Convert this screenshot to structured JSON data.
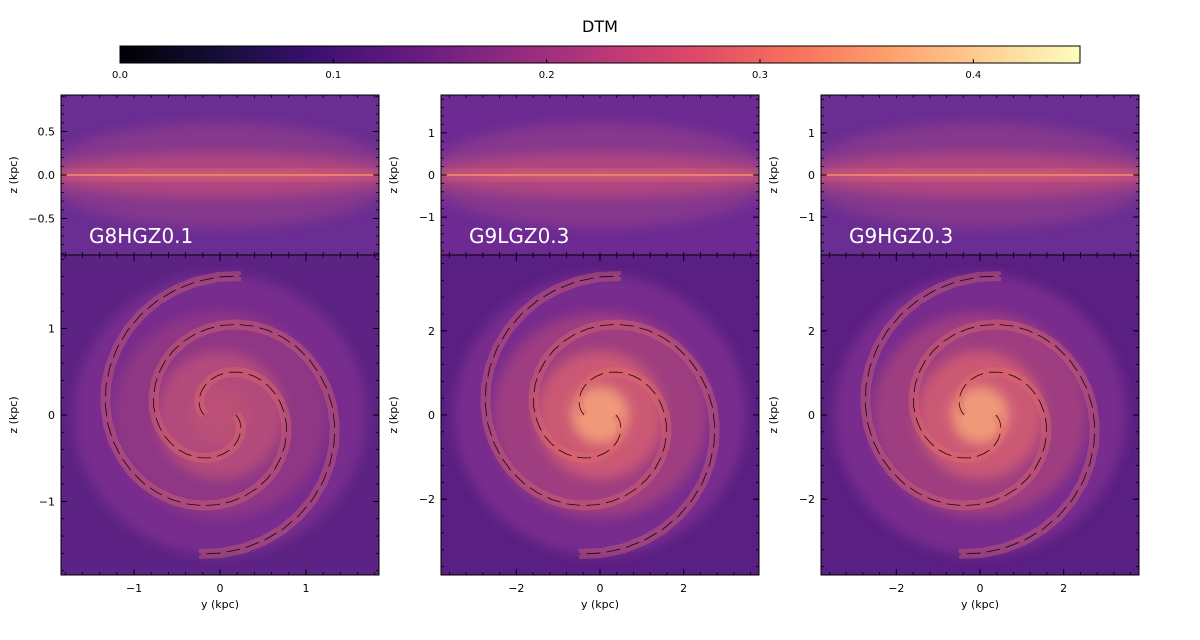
{
  "chart_data": {
    "type": "heatmap",
    "colorbar": {
      "title": "DTM",
      "colormap": "magma",
      "range": [
        0.0,
        0.45
      ],
      "ticks": [
        0.0,
        0.1,
        0.2,
        0.3,
        0.4
      ],
      "tick_labels": [
        "0.0",
        "0.1",
        "0.2",
        "0.3",
        "0.4"
      ]
    },
    "panels": [
      {
        "label": "G8HGZ0.1",
        "edge_on": {
          "xlim": [
            -1.85,
            1.85
          ],
          "ylim": [
            -0.92,
            0.92
          ],
          "yticks": [
            0.5,
            0.0,
            -0.5
          ],
          "ytick_labels": [
            "0.5",
            "0.0",
            "−0.5"
          ],
          "ylabel": "z (kpc)"
        },
        "face_on": {
          "xlim": [
            -1.85,
            1.85
          ],
          "ylim": [
            -1.85,
            1.85
          ],
          "xticks": [
            -1,
            0,
            1
          ],
          "xtick_labels": [
            "−1",
            "0",
            "1"
          ],
          "yticks": [
            1,
            0,
            -1
          ],
          "ytick_labels": [
            "1",
            "0",
            "−1"
          ],
          "xlabel": "y (kpc)",
          "ylabel": "z (kpc)"
        }
      },
      {
        "label": "G9LGZ0.3",
        "edge_on": {
          "xlim": [
            -3.8,
            3.8
          ],
          "ylim": [
            -1.9,
            1.9
          ],
          "yticks": [
            1,
            0,
            -1
          ],
          "ytick_labels": [
            "1",
            "0",
            "−1"
          ],
          "ylabel": "z (kpc)"
        },
        "face_on": {
          "xlim": [
            -3.8,
            3.8
          ],
          "ylim": [
            -3.8,
            3.8
          ],
          "xticks": [
            -2,
            0,
            2
          ],
          "xtick_labels": [
            "−2",
            "0",
            "2"
          ],
          "yticks": [
            2,
            0,
            -2
          ],
          "ytick_labels": [
            "2",
            "0",
            "−2"
          ],
          "xlabel": "y (kpc)",
          "ylabel": "z (kpc)"
        }
      },
      {
        "label": "G9HGZ0.3",
        "edge_on": {
          "xlim": [
            -3.8,
            3.8
          ],
          "ylim": [
            -1.9,
            1.9
          ],
          "yticks": [
            1,
            0,
            -1
          ],
          "ytick_labels": [
            "1",
            "0",
            "−1"
          ],
          "ylabel": "z (kpc)"
        },
        "face_on": {
          "xlim": [
            -3.8,
            3.8
          ],
          "ylim": [
            -3.8,
            3.8
          ],
          "xticks": [
            -2,
            0,
            2
          ],
          "xtick_labels": [
            "−2",
            "0",
            "2"
          ],
          "yticks": [
            2,
            0,
            -2
          ],
          "ytick_labels": [
            "2",
            "0",
            "−2"
          ],
          "xlabel": "y (kpc)",
          "ylabel": "z (kpc)"
        }
      }
    ]
  }
}
